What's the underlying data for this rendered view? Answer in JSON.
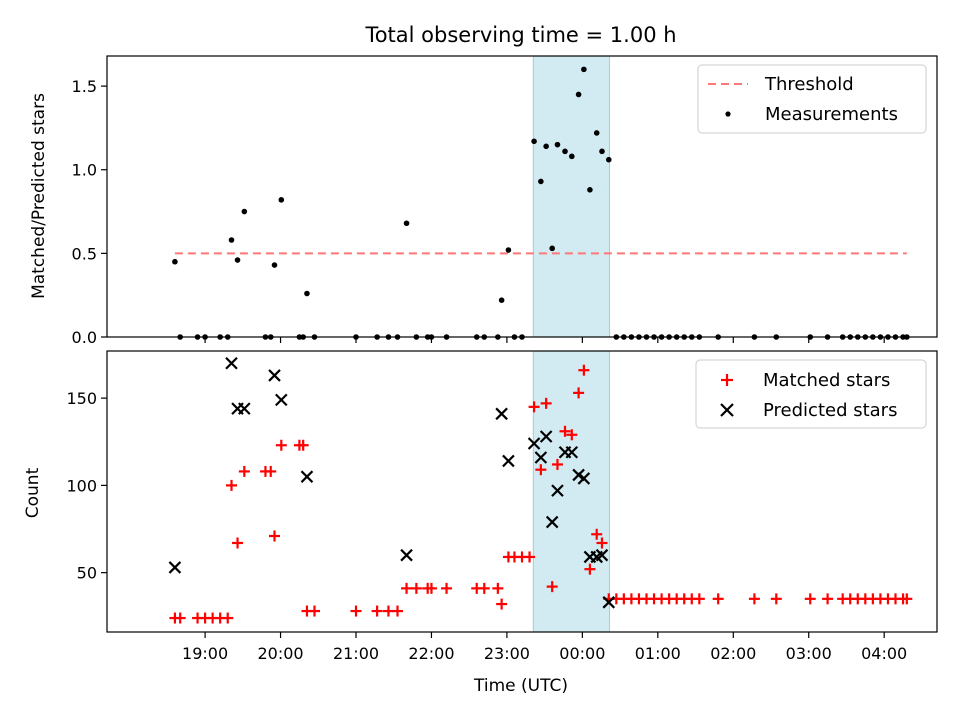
{
  "chart_data": {
    "type": "scatter",
    "title": "Total observing time = 1.00 h",
    "xlabel": "Time (UTC)",
    "x_tick_labels": [
      "19:00",
      "20:00",
      "21:00",
      "22:00",
      "23:00",
      "00:00",
      "01:00",
      "02:00",
      "03:00",
      "04:00"
    ],
    "xlim_hours": [
      17.7,
      28.7
    ],
    "highlight_span_hours": [
      23.35,
      24.36
    ],
    "top_panel": {
      "ylabel": "Matched/Predicted stars",
      "ylim": [
        0,
        1.68
      ],
      "y_ticks": [
        "0.0",
        "0.5",
        "1.0",
        "1.5"
      ],
      "legend_position": "top-right",
      "threshold": {
        "name": "Threshold",
        "value": 0.5,
        "x_range_hours": [
          18.6,
          28.3
        ],
        "color": "#ff7777"
      },
      "measurements": {
        "name": "Measurements",
        "color": "#000000",
        "points": [
          [
            18.6,
            0.45
          ],
          [
            18.67,
            0.0
          ],
          [
            18.9,
            0.0
          ],
          [
            19.0,
            0.0
          ],
          [
            19.2,
            0.0
          ],
          [
            19.3,
            0.0
          ],
          [
            19.35,
            0.58
          ],
          [
            19.43,
            0.46
          ],
          [
            19.52,
            0.75
          ],
          [
            19.8,
            0.0
          ],
          [
            19.87,
            0.0
          ],
          [
            19.92,
            0.43
          ],
          [
            20.01,
            0.82
          ],
          [
            20.25,
            0.0
          ],
          [
            20.3,
            0.0
          ],
          [
            20.35,
            0.26
          ],
          [
            20.45,
            0.0
          ],
          [
            21.0,
            0.0
          ],
          [
            21.28,
            0.0
          ],
          [
            21.43,
            0.0
          ],
          [
            21.55,
            0.0
          ],
          [
            21.67,
            0.68
          ],
          [
            21.8,
            0.0
          ],
          [
            21.95,
            0.0
          ],
          [
            22.0,
            0.0
          ],
          [
            22.2,
            0.0
          ],
          [
            22.6,
            0.0
          ],
          [
            22.7,
            0.0
          ],
          [
            22.88,
            0.0
          ],
          [
            22.93,
            0.22
          ],
          [
            23.02,
            0.52
          ],
          [
            23.1,
            0.0
          ],
          [
            23.2,
            0.0
          ],
          [
            23.36,
            1.17
          ],
          [
            23.45,
            0.93
          ],
          [
            23.52,
            1.14
          ],
          [
            23.6,
            0.53
          ],
          [
            23.67,
            1.15
          ],
          [
            23.77,
            1.11
          ],
          [
            23.86,
            1.08
          ],
          [
            23.95,
            1.45
          ],
          [
            24.02,
            1.6
          ],
          [
            24.1,
            0.88
          ],
          [
            24.19,
            1.22
          ],
          [
            24.26,
            1.11
          ],
          [
            24.35,
            1.06
          ],
          [
            24.45,
            0.0
          ],
          [
            24.55,
            0.0
          ],
          [
            24.65,
            0.0
          ],
          [
            24.75,
            0.0
          ],
          [
            24.85,
            0.0
          ],
          [
            24.95,
            0.0
          ],
          [
            25.05,
            0.0
          ],
          [
            25.15,
            0.0
          ],
          [
            25.25,
            0.0
          ],
          [
            25.35,
            0.0
          ],
          [
            25.45,
            0.0
          ],
          [
            25.55,
            0.0
          ],
          [
            25.8,
            0.0
          ],
          [
            26.28,
            0.0
          ],
          [
            26.57,
            0.0
          ],
          [
            27.02,
            0.0
          ],
          [
            27.25,
            0.0
          ],
          [
            27.45,
            0.0
          ],
          [
            27.55,
            0.0
          ],
          [
            27.65,
            0.0
          ],
          [
            27.75,
            0.0
          ],
          [
            27.85,
            0.0
          ],
          [
            27.95,
            0.0
          ],
          [
            28.05,
            0.0
          ],
          [
            28.15,
            0.0
          ],
          [
            28.25,
            0.0
          ],
          [
            28.3,
            0.0
          ]
        ]
      }
    },
    "bottom_panel": {
      "ylabel": "Count",
      "ylim": [
        16,
        177
      ],
      "y_ticks": [
        50,
        100,
        150
      ],
      "legend_position": "top-right",
      "series": [
        {
          "name": "Matched stars",
          "marker": "plus",
          "color": "#ff0000",
          "points": [
            [
              18.6,
              24
            ],
            [
              18.67,
              24
            ],
            [
              18.9,
              24
            ],
            [
              19.0,
              24
            ],
            [
              19.1,
              24
            ],
            [
              19.2,
              24
            ],
            [
              19.3,
              24
            ],
            [
              19.35,
              100
            ],
            [
              19.43,
              67
            ],
            [
              19.52,
              108
            ],
            [
              19.8,
              108
            ],
            [
              19.87,
              108
            ],
            [
              19.92,
              71
            ],
            [
              20.01,
              123
            ],
            [
              20.25,
              123
            ],
            [
              20.3,
              123
            ],
            [
              20.35,
              28
            ],
            [
              20.45,
              28
            ],
            [
              21.0,
              28
            ],
            [
              21.28,
              28
            ],
            [
              21.43,
              28
            ],
            [
              21.55,
              28
            ],
            [
              21.67,
              41
            ],
            [
              21.8,
              41
            ],
            [
              21.95,
              41
            ],
            [
              22.0,
              41
            ],
            [
              22.2,
              41
            ],
            [
              22.6,
              41
            ],
            [
              22.7,
              41
            ],
            [
              22.88,
              41
            ],
            [
              22.93,
              32
            ],
            [
              23.02,
              59
            ],
            [
              23.1,
              59
            ],
            [
              23.2,
              59
            ],
            [
              23.3,
              59
            ],
            [
              23.36,
              145
            ],
            [
              23.45,
              109
            ],
            [
              23.52,
              147
            ],
            [
              23.6,
              42
            ],
            [
              23.67,
              112
            ],
            [
              23.77,
              131
            ],
            [
              23.86,
              129
            ],
            [
              23.95,
              153
            ],
            [
              24.02,
              166
            ],
            [
              24.1,
              52
            ],
            [
              24.19,
              72
            ],
            [
              24.26,
              67
            ],
            [
              24.35,
              35
            ],
            [
              24.45,
              35
            ],
            [
              24.55,
              35
            ],
            [
              24.65,
              35
            ],
            [
              24.75,
              35
            ],
            [
              24.85,
              35
            ],
            [
              24.95,
              35
            ],
            [
              25.05,
              35
            ],
            [
              25.15,
              35
            ],
            [
              25.25,
              35
            ],
            [
              25.35,
              35
            ],
            [
              25.45,
              35
            ],
            [
              25.55,
              35
            ],
            [
              25.8,
              35
            ],
            [
              26.28,
              35
            ],
            [
              26.57,
              35
            ],
            [
              27.02,
              35
            ],
            [
              27.25,
              35
            ],
            [
              27.45,
              35
            ],
            [
              27.55,
              35
            ],
            [
              27.65,
              35
            ],
            [
              27.75,
              35
            ],
            [
              27.85,
              35
            ],
            [
              27.95,
              35
            ],
            [
              28.05,
              35
            ],
            [
              28.15,
              35
            ],
            [
              28.25,
              35
            ],
            [
              28.3,
              35
            ]
          ]
        },
        {
          "name": "Predicted stars",
          "marker": "x",
          "color": "#000000",
          "points": [
            [
              18.6,
              53
            ],
            [
              19.35,
              170
            ],
            [
              19.43,
              144
            ],
            [
              19.52,
              144
            ],
            [
              19.92,
              163
            ],
            [
              20.01,
              149
            ],
            [
              20.35,
              105
            ],
            [
              21.67,
              60
            ],
            [
              22.93,
              141
            ],
            [
              23.02,
              114
            ],
            [
              23.36,
              124
            ],
            [
              23.45,
              116
            ],
            [
              23.52,
              128
            ],
            [
              23.6,
              79
            ],
            [
              23.67,
              97
            ],
            [
              23.77,
              119
            ],
            [
              23.86,
              119
            ],
            [
              23.95,
              106
            ],
            [
              24.02,
              104
            ],
            [
              24.1,
              59
            ],
            [
              24.19,
              59
            ],
            [
              24.26,
              60
            ],
            [
              24.35,
              33
            ]
          ]
        }
      ]
    }
  }
}
